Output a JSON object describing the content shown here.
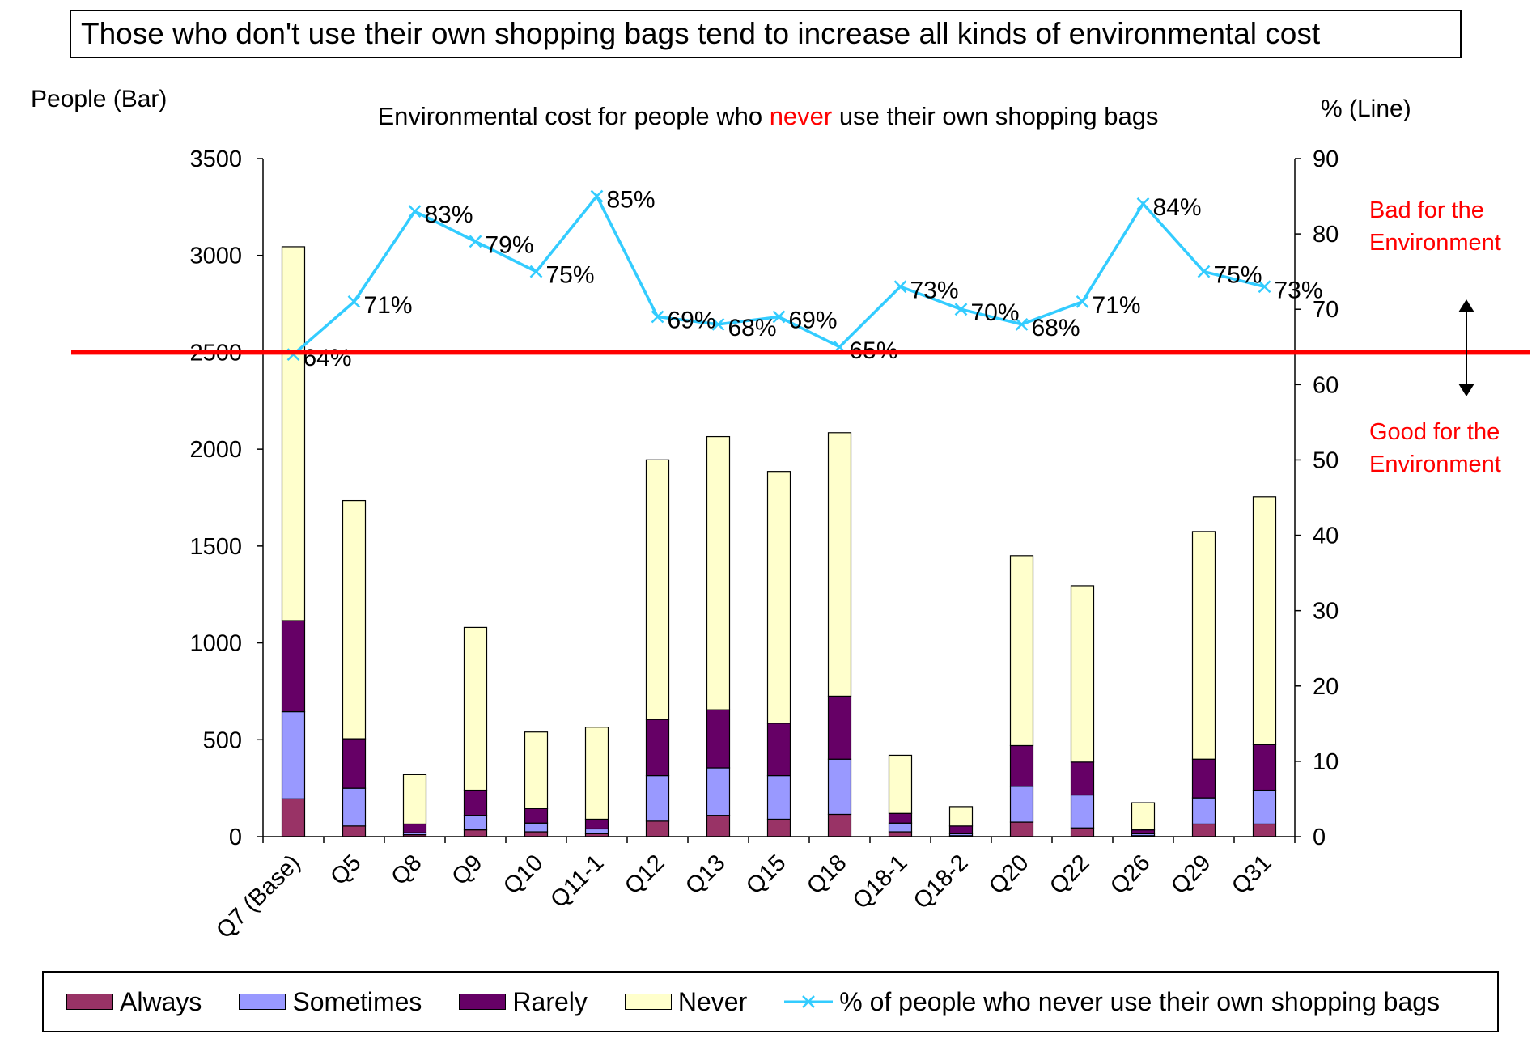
{
  "page_title": "Those who don't use their own shopping bags tend to increase all kinds of environmental cost",
  "left_axis_unit": "People (Bar)",
  "right_axis_unit": "% (Line)",
  "subtitle_before": "Environmental cost for people who ",
  "subtitle_highlight": "never",
  "subtitle_after": " use their own shopping bags",
  "bad_note": [
    "Bad for the",
    "Environment"
  ],
  "good_note": [
    "Good for the",
    "Environment"
  ],
  "colors": {
    "always": "#993366",
    "sometimes": "#9999ff",
    "rarely": "#660066",
    "never": "#ffffcc",
    "line": "#33ccff",
    "threshold": "#ff0000",
    "highlight": "#ff0000"
  },
  "chart_data": {
    "type": "bar",
    "stacked": true,
    "categories": [
      "Q7 (Base)",
      "Q5",
      "Q8",
      "Q9",
      "Q10",
      "Q11-1",
      "Q12",
      "Q13",
      "Q15",
      "Q18",
      "Q18-1",
      "Q18-2",
      "Q20",
      "Q22",
      "Q26",
      "Q29",
      "Q31"
    ],
    "series": [
      {
        "name": "Always",
        "values": [
          195,
          55,
          10,
          35,
          25,
          15,
          80,
          110,
          90,
          115,
          25,
          5,
          75,
          45,
          5,
          65,
          65
        ]
      },
      {
        "name": "Sometimes",
        "values": [
          450,
          195,
          10,
          75,
          45,
          25,
          235,
          245,
          225,
          285,
          45,
          10,
          185,
          170,
          10,
          135,
          175
        ]
      },
      {
        "name": "Rarely",
        "values": [
          470,
          255,
          45,
          130,
          75,
          50,
          290,
          300,
          270,
          325,
          50,
          40,
          210,
          170,
          20,
          200,
          235
        ]
      },
      {
        "name": "Never",
        "values": [
          1930,
          1230,
          255,
          840,
          395,
          475,
          1340,
          1410,
          1300,
          1360,
          300,
          100,
          980,
          910,
          140,
          1175,
          1280
        ]
      }
    ],
    "line_series": {
      "name": "% of people who never use their own shopping bags",
      "values": [
        64,
        71,
        83,
        79,
        75,
        85,
        69,
        68,
        69,
        65,
        73,
        70,
        68,
        71,
        84,
        75,
        73
      ],
      "labels": [
        "64%",
        "71%",
        "83%",
        "79%",
        "75%",
        "85%",
        "69%",
        "68%",
        "69%",
        "65%",
        "73%",
        "70%",
        "68%",
        "71%",
        "84%",
        "75%",
        "73%"
      ]
    },
    "y_left": {
      "label": "People (Bar)",
      "range": [
        0,
        3500
      ],
      "ticks": [
        "0",
        "500",
        "1000",
        "1500",
        "2000",
        "2500",
        "3000",
        "3500"
      ]
    },
    "y_right": {
      "label": "% (Line)",
      "range": [
        0,
        90
      ],
      "ticks": [
        "0",
        "10",
        "20",
        "30",
        "40",
        "50",
        "60",
        "70",
        "80",
        "90"
      ]
    },
    "threshold": {
      "axis": "y_left",
      "value": 2500
    },
    "grid": false,
    "legend_position": "bottom"
  }
}
